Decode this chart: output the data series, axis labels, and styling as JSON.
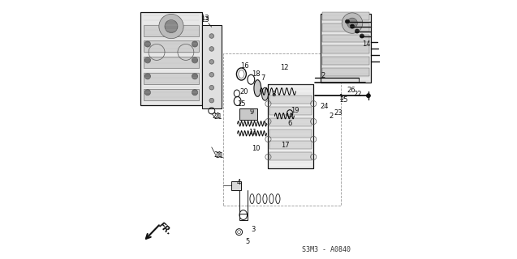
{
  "bg_color": "#ffffff",
  "fg_color": "#111111",
  "gray": "#555555",
  "light_gray": "#cccccc",
  "code": "S3M3 - A0840",
  "xlim": [
    0,
    7.5
  ],
  "ylim": [
    0,
    8.0
  ]
}
